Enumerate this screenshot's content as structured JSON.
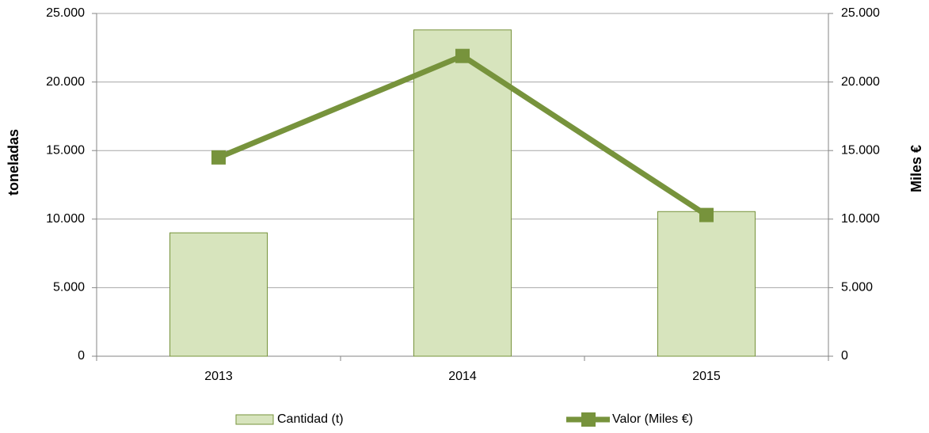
{
  "chart_data": {
    "type": "bar",
    "y_label": "toneladas",
    "y2_label": "Miles €",
    "categories": [
      "2013",
      "2014",
      "2015"
    ],
    "series": [
      {
        "name": "Cantidad (t)",
        "type": "bar",
        "color": "#d7e4bd",
        "edge_color": "#77933c",
        "values": [
          9000,
          23800,
          10550
        ]
      },
      {
        "name": "Valor (Miles €)",
        "type": "line",
        "axis": "y2",
        "color": "#77933c",
        "values": [
          14500,
          21900,
          10300
        ]
      }
    ],
    "ylim": [
      0,
      25000
    ],
    "yticks": [
      0,
      {
        "value": 5000,
        "label": "5.000"
      },
      {
        "value": 10000,
        "label": "10.000"
      },
      {
        "value": 15000,
        "label": "15.000"
      },
      {
        "value": 20000,
        "label": "20.000"
      },
      {
        "value": 25000,
        "label": "25.000"
      }
    ],
    "y2lim": [
      0,
      25000
    ],
    "y2ticks": [
      0,
      {
        "value": 5000,
        "label": "5.000"
      },
      {
        "value": 10000,
        "label": "10.000"
      },
      {
        "value": 15000,
        "label": "15.000"
      },
      {
        "value": 20000,
        "label": "20.000"
      },
      {
        "value": 25000,
        "label": "25.000"
      }
    ],
    "grid": true,
    "legend": "bottom"
  }
}
